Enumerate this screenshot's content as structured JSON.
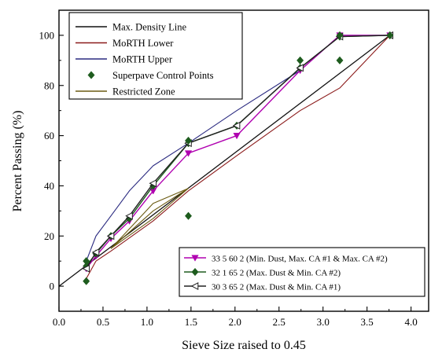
{
  "chart_data": {
    "type": "line",
    "xlabel": "Sieve Size raised to 0.45",
    "ylabel": "Percent Passing (%)",
    "xlim": [
      0.0,
      4.2
    ],
    "ylim": [
      -10,
      110
    ],
    "xticks": [
      "0.0",
      "0.5",
      "1.0",
      "1.5",
      "2.0",
      "2.5",
      "3.0",
      "3.5",
      "4.0"
    ],
    "yticks": [
      "0",
      "20",
      "40",
      "60",
      "80",
      "100"
    ],
    "grid": false,
    "legend_top": {
      "placement": "top-left",
      "items": [
        {
          "label": "Max. Density Line",
          "color": "#111111",
          "marker": "line"
        },
        {
          "label": "MoRTH Lower",
          "color": "#8b1a1a",
          "marker": "line"
        },
        {
          "label": "MoRTH Upper",
          "color": "#2a2a80",
          "marker": "line"
        },
        {
          "label": "Superpave Control Points",
          "color": "#1e5c1e",
          "marker": "diamond"
        },
        {
          "label": "Restricted Zone",
          "color": "#6b5b12",
          "marker": "line"
        }
      ]
    },
    "legend_bottom": {
      "placement": "bottom-right",
      "items": [
        {
          "label": "33 5 60 2 (Min. Dust, Max. CA #1 & Max. CA #2)",
          "color": "#b000b0",
          "marker": "triangle-down"
        },
        {
          "label": "32 1 65 2 (Max. Dust & Min. CA #2)",
          "color": "#1e5c1e",
          "marker": "diamond"
        },
        {
          "label": "30 3 65 2  (Max. Dust & Min. CA #1)",
          "color": "#222222",
          "marker": "triangle-left-open"
        }
      ]
    },
    "series": [
      {
        "role": "max-density",
        "color": "#111111",
        "marker": "none",
        "width": 1.3,
        "x": [
          0,
          3.76
        ],
        "y": [
          0,
          100
        ]
      },
      {
        "role": "morth-lower",
        "color": "#8b1a1a",
        "marker": "none",
        "width": 1.1,
        "x": [
          0.31,
          0.42,
          0.59,
          1.07,
          1.47,
          2.02,
          2.74,
          3.19,
          3.76
        ],
        "y": [
          3,
          10,
          14,
          26,
          38,
          52,
          70,
          79,
          100
        ]
      },
      {
        "role": "morth-upper",
        "color": "#2a2a80",
        "marker": "none",
        "width": 1.1,
        "x": [
          0.31,
          0.42,
          0.59,
          0.8,
          1.07,
          1.47,
          2.02,
          2.74,
          3.19,
          3.76
        ],
        "y": [
          10,
          20,
          28,
          38,
          48,
          57,
          70,
          86,
          100,
          100
        ]
      },
      {
        "role": "restricted-lower",
        "color": "#6b5b12",
        "marker": "none",
        "width": 1.1,
        "x": [
          0.59,
          1.07,
          1.47
        ],
        "y": [
          15,
          27,
          39
        ]
      },
      {
        "role": "restricted-upper",
        "color": "#6b5b12",
        "marker": "none",
        "width": 1.1,
        "x": [
          0.59,
          1.07,
          1.47
        ],
        "y": [
          15,
          33,
          39
        ]
      },
      {
        "role": "restricted-mid",
        "color": "#6b5b12",
        "marker": "none",
        "width": 1.1,
        "x": [
          0.59,
          1.07,
          1.47
        ],
        "y": [
          15,
          30,
          39
        ]
      },
      {
        "role": "blend-1",
        "color": "#b000b0",
        "marker": "triangle-down",
        "width": 1.4,
        "x": [
          0.31,
          0.42,
          0.59,
          0.8,
          1.07,
          1.47,
          2.02,
          2.74,
          3.19,
          3.76
        ],
        "y": [
          7,
          12,
          19,
          26,
          38,
          53,
          60,
          86,
          100,
          100
        ]
      },
      {
        "role": "blend-2",
        "color": "#1e5c1e",
        "marker": "diamond",
        "width": 1.4,
        "x": [
          0.31,
          0.42,
          0.59,
          0.8,
          1.07,
          1.47,
          2.02,
          2.74,
          3.19,
          3.76
        ],
        "y": [
          8,
          13,
          20,
          27,
          40,
          57,
          64,
          87,
          99.5,
          100
        ]
      },
      {
        "role": "blend-3",
        "color": "#222222",
        "marker": "triangle-left-open",
        "width": 1.4,
        "x": [
          0.31,
          0.42,
          0.59,
          0.8,
          1.07,
          1.47,
          2.02,
          2.74,
          3.19,
          3.76
        ],
        "y": [
          7,
          13.5,
          20,
          28,
          41,
          57,
          64,
          87,
          99.5,
          100
        ]
      }
    ],
    "control_points": {
      "color": "#1e5c1e",
      "marker": "diamond",
      "x": [
        0.31,
        0.31,
        1.47,
        1.47,
        2.74,
        3.19,
        3.19,
        3.76
      ],
      "y": [
        2,
        10,
        28,
        58,
        90,
        90,
        100,
        100
      ]
    }
  }
}
